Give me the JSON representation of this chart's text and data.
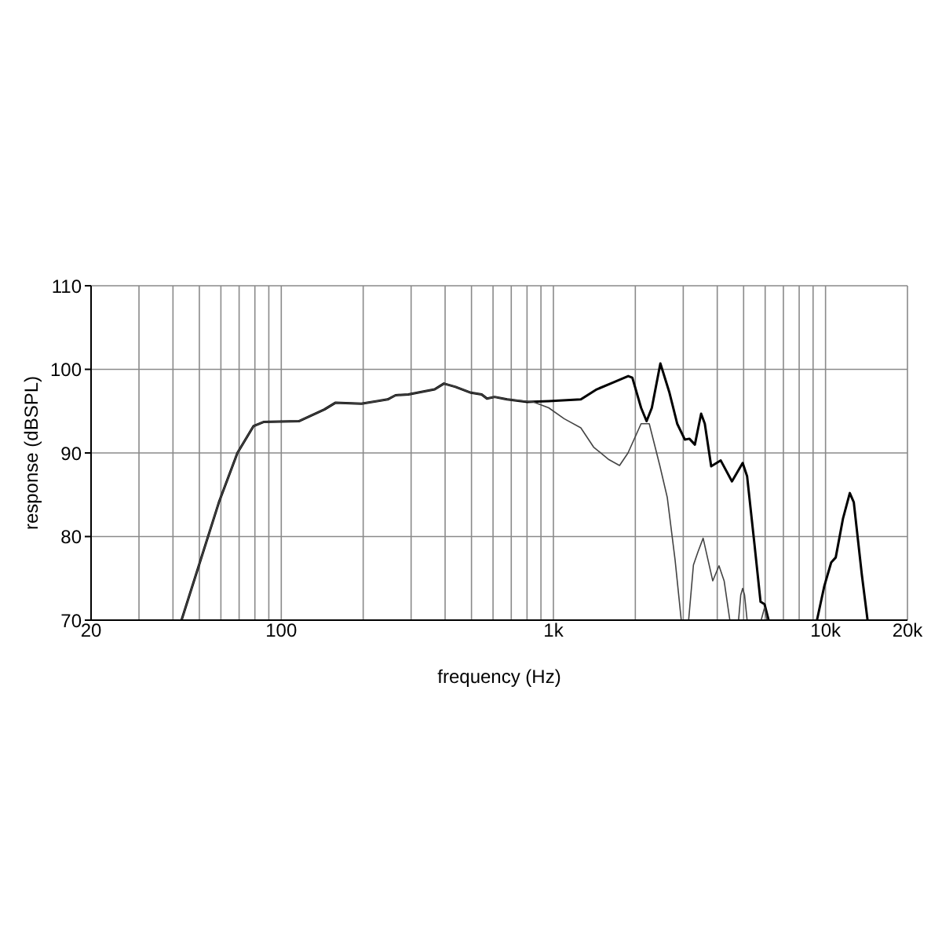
{
  "chart_data": {
    "type": "line",
    "xlabel": "frequency (Hz)",
    "ylabel": "response (dBSPL)",
    "log": "x",
    "grid": true,
    "marker": "none",
    "line_style": "solid",
    "xlim": [
      20,
      20000
    ],
    "ylim": [
      70,
      110
    ],
    "xticks": [
      20,
      {
        "value": 30,
        "label": null
      },
      {
        "value": 40,
        "label": null
      },
      {
        "value": 50,
        "label": null
      },
      {
        "value": 60,
        "label": null
      },
      {
        "value": 70,
        "label": null
      },
      {
        "value": 80,
        "label": null
      },
      {
        "value": 90,
        "label": null
      },
      100,
      {
        "value": 200,
        "label": null
      },
      {
        "value": 300,
        "label": null
      },
      {
        "value": 400,
        "label": null
      },
      {
        "value": 500,
        "label": null
      },
      {
        "value": 600,
        "label": null
      },
      {
        "value": 700,
        "label": null
      },
      {
        "value": 800,
        "label": null
      },
      {
        "value": 900,
        "label": null
      },
      {
        "value": 1000,
        "label": "1k"
      },
      {
        "value": 2000,
        "label": null
      },
      {
        "value": 3000,
        "label": null
      },
      {
        "value": 4000,
        "label": null
      },
      {
        "value": 5000,
        "label": null
      },
      {
        "value": 6000,
        "label": null
      },
      {
        "value": 7000,
        "label": null
      },
      {
        "value": 8000,
        "label": null
      },
      {
        "value": 9000,
        "label": null
      },
      {
        "value": 10000,
        "label": "10k"
      },
      {
        "value": 20000,
        "label": "20k"
      }
    ],
    "yticks": [
      70,
      80,
      90,
      100,
      110
    ],
    "series": [
      {
        "color": "#000000",
        "x": [
          43,
          59,
          69,
          79,
          86,
          116,
          144,
          158,
          197,
          246,
          263,
          293,
          366,
          396,
          437,
          498,
          545,
          570,
          608,
          676,
          802,
          961,
          1261,
          1442,
          1648,
          1883,
          1950,
          2100,
          2200,
          2300,
          2472,
          2670,
          2850,
          3040,
          3160,
          3310,
          3490,
          3600,
          3800,
          4120,
          4530,
          4960,
          5150,
          5480,
          5770,
          5970,
          6180,
          7500,
          9300,
          9900,
          10490,
          10900,
          11600,
          12280,
          12700,
          13600,
          14270
        ],
        "values": [
          70,
          84.1,
          90,
          93.2,
          93.7,
          93.8,
          95.2,
          96,
          95.9,
          96.4,
          96.9,
          97,
          97.6,
          98.3,
          97.9,
          97.2,
          97,
          96.5,
          96.7,
          96.4,
          96.1,
          96.2,
          96.4,
          97.6,
          98.4,
          99.2,
          99,
          95.4,
          93.8,
          95.4,
          100.7,
          97.2,
          93.5,
          91.6,
          91.7,
          91,
          94.7,
          93.5,
          88.4,
          89.1,
          86.6,
          88.8,
          87.2,
          79.1,
          72.2,
          71.9,
          70,
          null,
          70,
          74.1,
          76.9,
          77.5,
          82.2,
          85.2,
          84.1,
          75.4,
          70
        ]
      },
      {
        "color": "#444444",
        "x": [
          43,
          59,
          69,
          79,
          86,
          116,
          144,
          158,
          197,
          246,
          263,
          293,
          366,
          396,
          437,
          498,
          545,
          570,
          608,
          676,
          843,
          961,
          1095,
          1261,
          1405,
          1600,
          1750,
          1880,
          2100,
          2250,
          2460,
          2620,
          2800,
          2950,
          3050,
          3140,
          3270,
          3400,
          3550,
          3700,
          3850,
          4060,
          4240,
          4450,
          4600,
          4790,
          4880,
          4960,
          5040,
          5150,
          5500,
          5800,
          5970,
          6100
        ],
        "values": [
          70,
          84.1,
          90,
          93.2,
          93.7,
          93.8,
          95.2,
          96,
          95.9,
          96.4,
          96.9,
          97,
          97.6,
          98.3,
          97.9,
          97.2,
          97,
          96.5,
          96.7,
          96.4,
          96.1,
          95.4,
          94.1,
          93,
          90.7,
          89.2,
          88.5,
          90,
          93.5,
          93.5,
          88.5,
          84.7,
          77.2,
          70,
          null,
          70,
          76.6,
          78.2,
          79.8,
          77.2,
          74.7,
          76.5,
          74.7,
          70,
          null,
          70,
          73,
          73.8,
          73,
          70,
          null,
          70,
          71.5,
          70
        ]
      }
    ]
  }
}
